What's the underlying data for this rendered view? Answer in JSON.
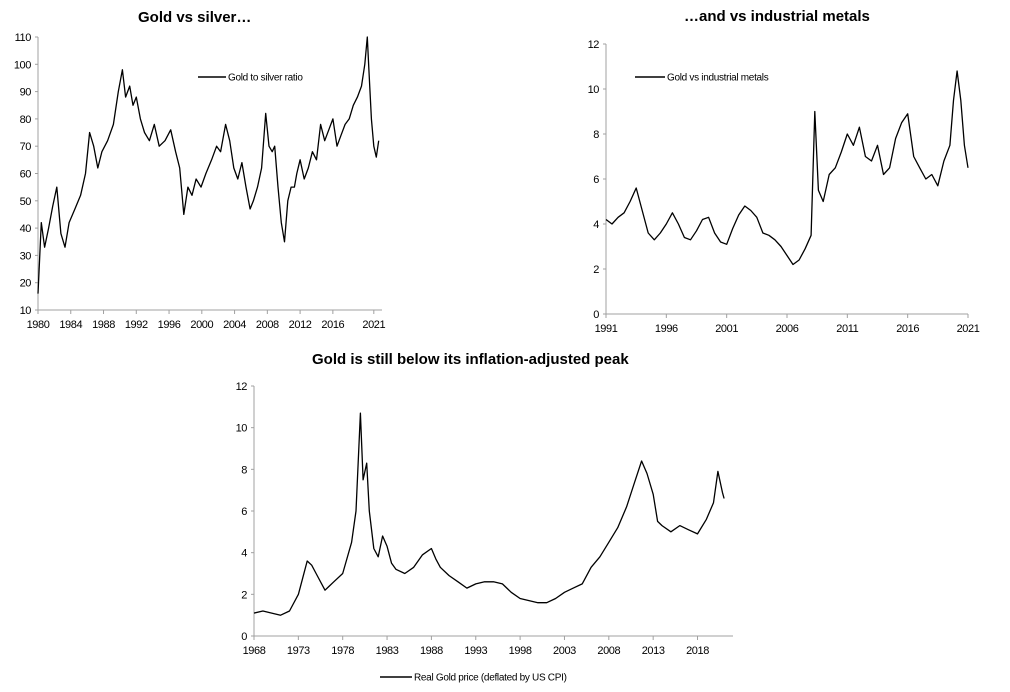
{
  "chart_data": [
    {
      "type": "line",
      "title": "Gold vs silver…",
      "legend": "Gold to silver ratio",
      "legend_position": "top-center",
      "xlabel": "",
      "ylabel": "",
      "xlim": [
        1980,
        2022
      ],
      "ylim": [
        10,
        110
      ],
      "xticks": [
        1980,
        1984,
        1988,
        1992,
        1996,
        2000,
        2004,
        2008,
        2012,
        2016,
        2021
      ],
      "yticks": [
        10,
        20,
        30,
        40,
        50,
        60,
        70,
        80,
        90,
        100,
        110
      ],
      "series": [
        {
          "name": "Gold to silver ratio",
          "x": [
            1980,
            1980.4,
            1980.8,
            1981.3,
            1981.8,
            1982.3,
            1982.8,
            1983.3,
            1983.8,
            1984.5,
            1985.2,
            1985.8,
            1986.3,
            1986.8,
            1987.3,
            1987.8,
            1988.5,
            1989.2,
            1989.8,
            1990.3,
            1990.7,
            1991.2,
            1991.6,
            1992.0,
            1992.5,
            1993.0,
            1993.6,
            1994.2,
            1994.8,
            1995.5,
            1996.2,
            1996.8,
            1997.3,
            1997.8,
            1998.3,
            1998.8,
            1999.3,
            1999.9,
            2000.5,
            2001.2,
            2001.8,
            2002.3,
            2002.9,
            2003.4,
            2003.9,
            2004.4,
            2004.9,
            2005.4,
            2005.9,
            2006.3,
            2006.8,
            2007.3,
            2007.8,
            2008.2,
            2008.6,
            2008.9,
            2009.3,
            2009.7,
            2010.1,
            2010.5,
            2010.9,
            2011.3,
            2011.6,
            2012.0,
            2012.5,
            2013.0,
            2013.5,
            2014.0,
            2014.5,
            2015.0,
            2015.5,
            2016.0,
            2016.5,
            2017.0,
            2017.5,
            2018.0,
            2018.5,
            2019.0,
            2019.5,
            2019.9,
            2020.2,
            2020.4,
            2020.7,
            2021.0,
            2021.3,
            2021.6
          ],
          "values": [
            16,
            42,
            33,
            40,
            48,
            55,
            38,
            33,
            42,
            47,
            52,
            60,
            75,
            70,
            62,
            68,
            72,
            78,
            90,
            98,
            88,
            92,
            85,
            88,
            80,
            75,
            72,
            78,
            70,
            72,
            76,
            68,
            62,
            45,
            55,
            52,
            58,
            55,
            60,
            65,
            70,
            68,
            78,
            72,
            62,
            58,
            64,
            55,
            47,
            50,
            55,
            62,
            82,
            70,
            68,
            70,
            55,
            42,
            35,
            50,
            55,
            55,
            60,
            65,
            58,
            62,
            68,
            65,
            78,
            72,
            76,
            80,
            70,
            74,
            78,
            80,
            85,
            88,
            92,
            100,
            110,
            98,
            80,
            70,
            66,
            72
          ]
        }
      ]
    },
    {
      "type": "line",
      "title": "…and vs industrial metals",
      "legend": "Gold vs industrial metals",
      "legend_position": "top-left",
      "xlabel": "",
      "ylabel": "",
      "xlim": [
        1991,
        2021
      ],
      "ylim": [
        0,
        12
      ],
      "xticks": [
        1991,
        1996,
        2001,
        2006,
        2011,
        2016,
        2021
      ],
      "yticks": [
        0,
        2,
        4,
        6,
        8,
        10,
        12
      ],
      "series": [
        {
          "name": "Gold vs industrial metals",
          "x": [
            1991.0,
            1991.5,
            1992.0,
            1992.5,
            1993.0,
            1993.5,
            1994.0,
            1994.5,
            1995.0,
            1995.5,
            1996.0,
            1996.5,
            1997.0,
            1997.5,
            1998.0,
            1998.5,
            1999.0,
            1999.5,
            2000.0,
            2000.5,
            2001.0,
            2001.5,
            2002.0,
            2002.5,
            2003.0,
            2003.5,
            2004.0,
            2004.5,
            2005.0,
            2005.5,
            2006.0,
            2006.5,
            2007.0,
            2007.5,
            2008.0,
            2008.3,
            2008.6,
            2009.0,
            2009.5,
            2010.0,
            2010.5,
            2011.0,
            2011.5,
            2012.0,
            2012.5,
            2013.0,
            2013.5,
            2014.0,
            2014.5,
            2015.0,
            2015.5,
            2016.0,
            2016.5,
            2017.0,
            2017.5,
            2018.0,
            2018.5,
            2019.0,
            2019.5,
            2019.8,
            2020.1,
            2020.4,
            2020.7,
            2021.0
          ],
          "values": [
            4.2,
            4.0,
            4.3,
            4.5,
            5.0,
            5.6,
            4.6,
            3.6,
            3.3,
            3.6,
            4.0,
            4.5,
            4.0,
            3.4,
            3.3,
            3.7,
            4.2,
            4.3,
            3.6,
            3.2,
            3.1,
            3.8,
            4.4,
            4.8,
            4.6,
            4.3,
            3.6,
            3.5,
            3.3,
            3.0,
            2.6,
            2.2,
            2.4,
            2.9,
            3.5,
            9.0,
            5.5,
            5.0,
            6.2,
            6.5,
            7.2,
            8.0,
            7.5,
            8.3,
            7.0,
            6.8,
            7.5,
            6.2,
            6.5,
            7.8,
            8.5,
            8.9,
            7.0,
            6.5,
            6.0,
            6.2,
            5.7,
            6.8,
            7.5,
            9.5,
            10.8,
            9.5,
            7.5,
            6.5
          ]
        }
      ]
    },
    {
      "type": "line",
      "title": "Gold is still below its inflation-adjusted peak",
      "legend": "Real Gold price (deflated by US CPI)",
      "legend_position": "bottom-center",
      "xlabel": "",
      "ylabel": "",
      "xlim": [
        1968,
        2022
      ],
      "ylim": [
        0,
        12
      ],
      "xticks": [
        1968,
        1973,
        1978,
        1983,
        1988,
        1993,
        1998,
        2003,
        2008,
        2013,
        2018
      ],
      "yticks": [
        0,
        2,
        4,
        6,
        8,
        10,
        12
      ],
      "series": [
        {
          "name": "Real Gold price (deflated by US CPI)",
          "x": [
            1968.0,
            1969.0,
            1970.0,
            1971.0,
            1972.0,
            1973.0,
            1973.5,
            1974.0,
            1974.5,
            1975.0,
            1976.0,
            1976.5,
            1977.0,
            1978.0,
            1979.0,
            1979.5,
            1980.0,
            1980.3,
            1980.7,
            1981.0,
            1981.5,
            1982.0,
            1982.5,
            1983.0,
            1983.5,
            1984.0,
            1985.0,
            1986.0,
            1987.0,
            1988.0,
            1988.5,
            1989.0,
            1990.0,
            1991.0,
            1992.0,
            1993.0,
            1994.0,
            1995.0,
            1996.0,
            1997.0,
            1998.0,
            1999.0,
            2000.0,
            2001.0,
            2002.0,
            2003.0,
            2004.0,
            2005.0,
            2006.0,
            2007.0,
            2008.0,
            2009.0,
            2010.0,
            2011.0,
            2011.7,
            2012.3,
            2013.0,
            2013.5,
            2014.0,
            2015.0,
            2016.0,
            2017.0,
            2018.0,
            2019.0,
            2019.8,
            2020.3,
            2020.8,
            2021.0
          ],
          "values": [
            1.1,
            1.2,
            1.1,
            1.0,
            1.2,
            2.0,
            2.8,
            3.6,
            3.4,
            3.0,
            2.2,
            2.4,
            2.6,
            3.0,
            4.5,
            6.0,
            10.7,
            7.5,
            8.3,
            6.0,
            4.2,
            3.8,
            4.8,
            4.3,
            3.5,
            3.2,
            3.0,
            3.3,
            3.9,
            4.2,
            3.7,
            3.3,
            2.9,
            2.6,
            2.3,
            2.5,
            2.6,
            2.6,
            2.5,
            2.1,
            1.8,
            1.7,
            1.6,
            1.6,
            1.8,
            2.1,
            2.3,
            2.5,
            3.3,
            3.8,
            4.5,
            5.2,
            6.2,
            7.5,
            8.4,
            7.8,
            6.8,
            5.5,
            5.3,
            5.0,
            5.3,
            5.1,
            4.9,
            5.6,
            6.4,
            7.9,
            6.9,
            6.6
          ]
        }
      ]
    }
  ]
}
